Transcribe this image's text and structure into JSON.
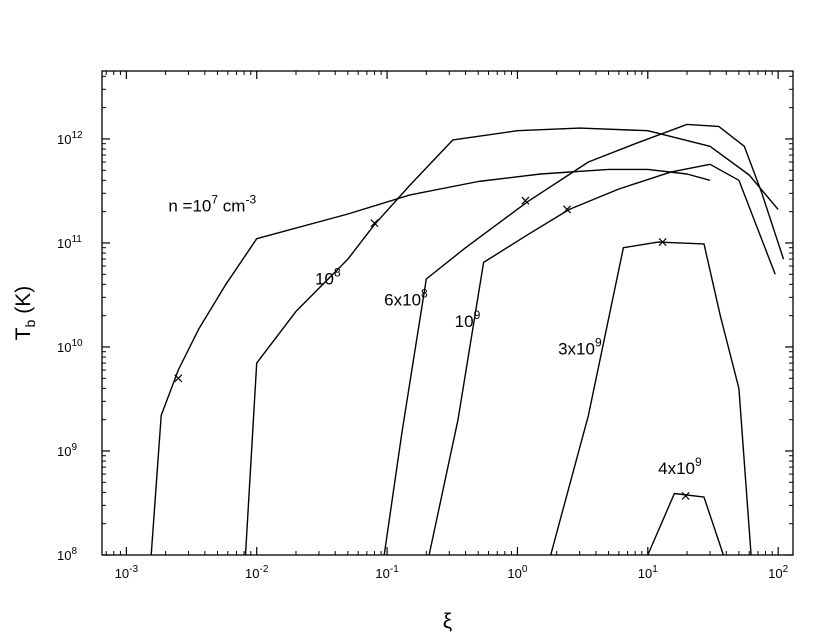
{
  "chart_data": {
    "type": "line",
    "title": "",
    "xlabel": "ξ",
    "ylabel": "T",
    "ylabel_sub": "b",
    "ylabel_unit": "(K)",
    "x_scale": "log",
    "y_scale": "log",
    "xlim": [
      0.00065,
      130
    ],
    "ylim": [
      100000000.0,
      4500000000000.0
    ],
    "grid": false,
    "legend": "none",
    "x_ticks": [
      {
        "value": 0.001,
        "base": "10",
        "exp": "-3"
      },
      {
        "value": 0.01,
        "base": "10",
        "exp": "-2"
      },
      {
        "value": 0.1,
        "base": "10",
        "exp": "-1"
      },
      {
        "value": 1,
        "base": "10",
        "exp": "0"
      },
      {
        "value": 10,
        "base": "10",
        "exp": "1"
      },
      {
        "value": 100,
        "base": "10",
        "exp": "2"
      }
    ],
    "y_ticks": [
      {
        "value": 100000000.0,
        "base": "10",
        "exp": "8"
      },
      {
        "value": 1000000000.0,
        "base": "10",
        "exp": "9"
      },
      {
        "value": 10000000000.0,
        "base": "10",
        "exp": "10"
      },
      {
        "value": 100000000000.0,
        "base": "10",
        "exp": "11"
      },
      {
        "value": 1000000000000.0,
        "base": "10",
        "exp": "12"
      }
    ],
    "series": [
      {
        "label_parts": [
          "n =10",
          "7",
          " cm",
          "-3"
        ],
        "label_at": [
          0.0021,
          200000000000.0
        ],
        "points": [
          [
            0.00155,
            100000000.0
          ],
          [
            0.00185,
            2200000000.0
          ],
          [
            0.0025,
            6000000000.0
          ],
          [
            0.0036,
            15000000000.0
          ],
          [
            0.0058,
            40000000000.0
          ],
          [
            0.01,
            110000000000.0
          ],
          [
            0.05,
            190000000000.0
          ],
          [
            0.15,
            290000000000.0
          ],
          [
            0.5,
            390000000000.0
          ],
          [
            1.5,
            460000000000.0
          ],
          [
            5,
            510000000000.0
          ],
          [
            10,
            510000000000.0
          ],
          [
            20,
            460000000000.0
          ],
          [
            30,
            400000000000.0
          ]
        ],
        "markers": [
          [
            0.0025,
            5000000000.0
          ]
        ]
      },
      {
        "label_parts": [
          "10",
          "8"
        ],
        "label_at": [
          0.028,
          40000000000.0
        ],
        "points": [
          [
            0.0082,
            100000000.0
          ],
          [
            0.01,
            7000000000.0
          ],
          [
            0.02,
            22000000000.0
          ],
          [
            0.05,
            70000000000.0
          ],
          [
            0.08,
            150000000000.0
          ],
          [
            0.15,
            360000000000.0
          ],
          [
            0.32,
            980000000000.0
          ],
          [
            1,
            1200000000000.0
          ],
          [
            3,
            1270000000000.0
          ],
          [
            10,
            1200000000000.0
          ],
          [
            30,
            850000000000.0
          ],
          [
            60,
            450000000000.0
          ],
          [
            100,
            210000000000.0
          ]
        ],
        "markers": [
          [
            0.08,
            155000000000.0
          ]
        ]
      },
      {
        "label_parts": [
          "6x10",
          "8"
        ],
        "label_at": [
          0.095,
          25000000000.0
        ],
        "points": [
          [
            0.095,
            100000000.0
          ],
          [
            0.13,
            1500000000.0
          ],
          [
            0.2,
            45000000000.0
          ],
          [
            0.4,
            90000000000.0
          ],
          [
            1.2,
            250000000000.0
          ],
          [
            3.5,
            600000000000.0
          ],
          [
            8,
            900000000000.0
          ],
          [
            20,
            1380000000000.0
          ],
          [
            35,
            1320000000000.0
          ],
          [
            55,
            850000000000.0
          ],
          [
            75,
            300000000000.0
          ],
          [
            110,
            70000000000.0
          ]
        ],
        "markers": [
          [
            1.15,
            255000000000.0
          ]
        ]
      },
      {
        "label_parts": [
          "10",
          "9"
        ],
        "label_at": [
          0.33,
          15500000000.0
        ],
        "points": [
          [
            0.21,
            100000000.0
          ],
          [
            0.35,
            2000000000.0
          ],
          [
            0.55,
            65000000000.0
          ],
          [
            1.2,
            120000000000.0
          ],
          [
            2.5,
            210000000000.0
          ],
          [
            6,
            330000000000.0
          ],
          [
            15,
            480000000000.0
          ],
          [
            30,
            570000000000.0
          ],
          [
            50,
            400000000000.0
          ],
          [
            95,
            50000000000.0
          ]
        ],
        "markers": [
          [
            2.4,
            210000000000.0
          ]
        ]
      },
      {
        "label_parts": [
          "3x10",
          "9"
        ],
        "label_at": [
          2.05,
          8500000000.0
        ],
        "points": [
          [
            1.8,
            100000000.0
          ],
          [
            3.5,
            2200000000.0
          ],
          [
            6.5,
            90000000000.0
          ],
          [
            12,
            102000000000.0
          ],
          [
            27,
            98000000000.0
          ],
          [
            36,
            20000000000.0
          ],
          [
            50,
            4000000000.0
          ],
          [
            62,
            100000000.0
          ]
        ],
        "markers": [
          [
            13,
            102000000000.0
          ]
        ]
      },
      {
        "label_parts": [
          "4x10",
          "9"
        ],
        "label_at": [
          12,
          600000000.0
        ],
        "points": [
          [
            10,
            100000000.0
          ],
          [
            16,
            390000000.0
          ],
          [
            27,
            360000000.0
          ],
          [
            38,
            100000000.0
          ]
        ],
        "markers": [
          [
            19.5,
            370000000.0
          ]
        ]
      }
    ]
  }
}
